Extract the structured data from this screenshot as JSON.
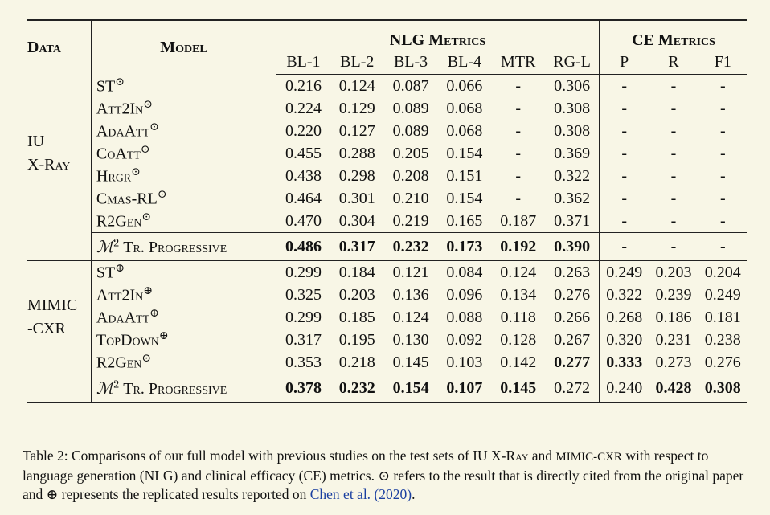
{
  "table": {
    "header": {
      "data": "Data",
      "model": "Model",
      "nlg": "NLG Metrics",
      "ce": "CE Metrics",
      "columns": [
        "BL-1",
        "BL-2",
        "BL-3",
        "BL-4",
        "MTR",
        "RG-L",
        "P",
        "R",
        "F1"
      ]
    },
    "groups": [
      {
        "dataset": [
          "IU",
          "X-Ray"
        ],
        "rows": [
          {
            "model": "ST",
            "mark": "⊙",
            "values": [
              "0.216",
              "0.124",
              "0.087",
              "0.066",
              "-",
              "0.306",
              "-",
              "-",
              "-"
            ],
            "bold": []
          },
          {
            "model": "Att2In",
            "mark": "⊙",
            "values": [
              "0.224",
              "0.129",
              "0.089",
              "0.068",
              "-",
              "0.308",
              "-",
              "-",
              "-"
            ],
            "bold": []
          },
          {
            "model": "AdaAtt",
            "mark": "⊙",
            "values": [
              "0.220",
              "0.127",
              "0.089",
              "0.068",
              "-",
              "0.308",
              "-",
              "-",
              "-"
            ],
            "bold": []
          },
          {
            "model": "CoAtt",
            "mark": "⊙",
            "values": [
              "0.455",
              "0.288",
              "0.205",
              "0.154",
              "-",
              "0.369",
              "-",
              "-",
              "-"
            ],
            "bold": []
          },
          {
            "model": "Hrgr",
            "mark": "⊙",
            "values": [
              "0.438",
              "0.298",
              "0.208",
              "0.151",
              "-",
              "0.322",
              "-",
              "-",
              "-"
            ],
            "bold": []
          },
          {
            "model": "Cmas-RL",
            "mark": "⊙",
            "values": [
              "0.464",
              "0.301",
              "0.210",
              "0.154",
              "-",
              "0.362",
              "-",
              "-",
              "-"
            ],
            "bold": []
          },
          {
            "model": "R2Gen",
            "mark": "⊙",
            "values": [
              "0.470",
              "0.304",
              "0.219",
              "0.165",
              "0.187",
              "0.371",
              "-",
              "-",
              "-"
            ],
            "bold": []
          }
        ],
        "ours": {
          "symbol": "ℳ",
          "sup": "2",
          "name": "Tr. Progressive",
          "values": [
            "0.486",
            "0.317",
            "0.232",
            "0.173",
            "0.192",
            "0.390",
            "-",
            "-",
            "-"
          ],
          "bold": [
            0,
            1,
            2,
            3,
            4,
            5
          ]
        }
      },
      {
        "dataset": [
          "MIMIC",
          "-CXR"
        ],
        "rows": [
          {
            "model": "ST",
            "mark": "⊕",
            "values": [
              "0.299",
              "0.184",
              "0.121",
              "0.084",
              "0.124",
              "0.263",
              "0.249",
              "0.203",
              "0.204"
            ],
            "bold": []
          },
          {
            "model": "Att2In",
            "mark": "⊕",
            "values": [
              "0.325",
              "0.203",
              "0.136",
              "0.096",
              "0.134",
              "0.276",
              "0.322",
              "0.239",
              "0.249"
            ],
            "bold": []
          },
          {
            "model": "AdaAtt",
            "mark": "⊕",
            "values": [
              "0.299",
              "0.185",
              "0.124",
              "0.088",
              "0.118",
              "0.266",
              "0.268",
              "0.186",
              "0.181"
            ],
            "bold": []
          },
          {
            "model": "TopDown",
            "mark": "⊕",
            "values": [
              "0.317",
              "0.195",
              "0.130",
              "0.092",
              "0.128",
              "0.267",
              "0.320",
              "0.231",
              "0.238"
            ],
            "bold": []
          },
          {
            "model": "R2Gen",
            "mark": "⊙",
            "values": [
              "0.353",
              "0.218",
              "0.145",
              "0.103",
              "0.142",
              "0.277",
              "0.333",
              "0.273",
              "0.276"
            ],
            "bold": [
              5,
              6
            ]
          }
        ],
        "ours": {
          "symbol": "ℳ",
          "sup": "2",
          "name": "Tr. Progressive",
          "values": [
            "0.378",
            "0.232",
            "0.154",
            "0.107",
            "0.145",
            "0.272",
            "0.240",
            "0.428",
            "0.308"
          ],
          "bold": [
            0,
            1,
            2,
            3,
            4,
            7,
            8
          ]
        }
      }
    ]
  },
  "caption": [
    {
      "text": "Table 2: Comparisons of our full model with previous studies on the test sets of IU ",
      "style": "plain"
    },
    {
      "text": "X-Ray",
      "style": "sc"
    },
    {
      "text": " and ",
      "style": "plain"
    },
    {
      "text": "MIMIC-CXR",
      "style": "small"
    },
    {
      "text": " with respect to language generation (NLG) and clinical efficacy (CE) metrics. ⊙ refers to the result that is directly cited from the original paper and ⊕ represents the replicated results reported on ",
      "style": "plain"
    },
    {
      "text": "Chen et al. (2020)",
      "style": "link"
    },
    {
      "text": ".",
      "style": "plain"
    }
  ]
}
